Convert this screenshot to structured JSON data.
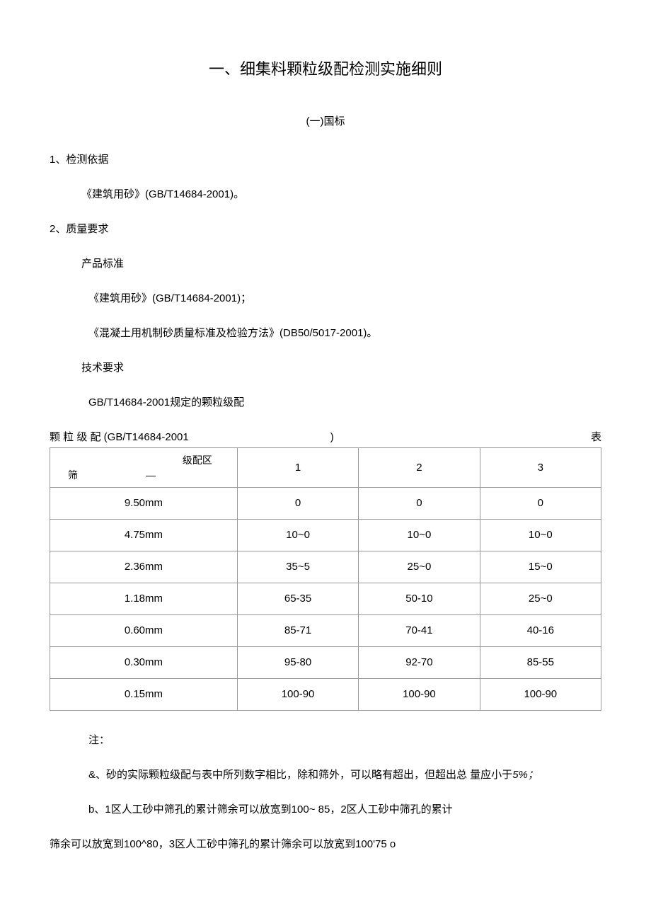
{
  "title": "一、细集料颗粒级配检测实施细则",
  "subtitle": "(一)国标",
  "section1": {
    "num": "1、检测依据",
    "content": "《建筑用砂》(GB/T14684-2001)。"
  },
  "section2": {
    "num": "2、质量要求",
    "sub1": "产品标准",
    "content1": "《建筑用砂》(GB/T14684-2001)；",
    "content2": "《混凝土用机制砂质量标准及检验方法》(DB50/5017-2001)。",
    "sub2": "技术要求",
    "content3": "GB/T14684-2001规定的颗粒级配"
  },
  "tableCaption": {
    "left": "颗 粒 级 配 (GB/T14684-2001",
    "mid": ")",
    "right": "表"
  },
  "tableHeader": {
    "topLabel": "级配区",
    "bottomLabel": "筛",
    "dash": "—",
    "col1": "1",
    "col2": "2",
    "col3": "3"
  },
  "tableRows": [
    {
      "sieve": "9.50mm",
      "c1": "0",
      "c2": "0",
      "c3": "0"
    },
    {
      "sieve": "4.75mm",
      "c1": "10~0",
      "c2": "10~0",
      "c3": "10~0"
    },
    {
      "sieve": "2.36mm",
      "c1": "35~5",
      "c2": "25~0",
      "c3": "15~0"
    },
    {
      "sieve": "1.18mm",
      "c1": "65-35",
      "c2": "50-10",
      "c3": "25~0"
    },
    {
      "sieve": "0.60mm",
      "c1": "85-71",
      "c2": "70-41",
      "c3": "40-16"
    },
    {
      "sieve": "0.30mm",
      "c1": "95-80",
      "c2": "92-70",
      "c3": "85-55"
    },
    {
      "sieve": "0.15mm",
      "c1": "100-90",
      "c2": "100-90",
      "c3": "100-90"
    }
  ],
  "notes": {
    "label": "注：",
    "noteA": "&、砂的实际颗粒级配与表中所列数字相比，除和筛外，可以略有超出，但超出总 量应小于",
    "noteAItalic": "5%；",
    "noteB": "b、1区人工砂中筛孔的累计筛余可以放宽到100~ 85，2区人工砂中筛孔的累计",
    "noteC": "筛余可以放宽到100^80，3区人工砂中筛孔的累计筛余可以放宽到100'75 o"
  }
}
